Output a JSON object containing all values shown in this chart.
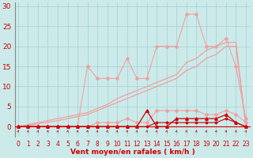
{
  "x": [
    0,
    1,
    2,
    3,
    4,
    5,
    6,
    7,
    8,
    9,
    10,
    11,
    12,
    13,
    14,
    15,
    16,
    17,
    18,
    19,
    20,
    21,
    22,
    23
  ],
  "line_jagged_top": [
    0,
    0,
    0,
    0,
    0,
    0,
    0,
    15,
    12,
    12,
    12,
    17,
    12,
    12,
    20,
    20,
    20,
    28,
    28,
    20,
    20,
    22,
    15,
    2
  ],
  "line_jagged_bot": [
    0,
    0,
    0,
    0,
    0,
    0,
    0,
    0,
    1,
    1,
    1,
    2,
    1,
    1,
    4,
    4,
    4,
    4,
    4,
    3,
    3,
    4,
    3,
    1
  ],
  "line_diag1": [
    0,
    0.5,
    1,
    1.5,
    2,
    2.5,
    3,
    3.5,
    4.5,
    5.5,
    7,
    8,
    9,
    10,
    11,
    12,
    13,
    16,
    17,
    19,
    20,
    21,
    21,
    0
  ],
  "line_diag2": [
    0,
    0.3,
    0.7,
    1.1,
    1.5,
    2,
    2.5,
    3,
    4,
    5,
    6,
    7,
    8,
    9,
    10,
    11,
    12,
    14,
    15,
    17,
    18,
    20,
    20,
    0
  ],
  "line_dark_bottom": [
    0,
    0,
    0,
    0,
    0,
    0,
    0,
    0,
    0,
    0,
    0,
    0,
    0,
    4,
    0,
    0,
    2,
    2,
    2,
    2,
    2,
    3,
    1,
    0
  ],
  "line_flat_red": [
    0,
    0,
    0,
    0,
    0,
    0,
    0,
    0,
    0,
    0,
    0,
    0,
    0,
    0,
    1,
    1,
    1,
    1,
    1,
    1,
    1,
    2,
    1,
    0
  ],
  "bg_color": "#cceaea",
  "grid_color": "#aad4d4",
  "color_light_pink": "#f0a0a0",
  "color_pink": "#e87878",
  "color_dark_red": "#cc0000",
  "color_red": "#dd2222",
  "xlabel": "Vent moyen/en rafales ( km/h )",
  "yticks": [
    0,
    5,
    10,
    15,
    20,
    25,
    30
  ],
  "xticks": [
    0,
    1,
    2,
    3,
    4,
    5,
    6,
    7,
    8,
    9,
    10,
    11,
    12,
    13,
    14,
    15,
    16,
    17,
    18,
    19,
    20,
    21,
    22,
    23
  ],
  "ylim": [
    -2.5,
    31
  ],
  "xlim": [
    -0.3,
    23.5
  ]
}
